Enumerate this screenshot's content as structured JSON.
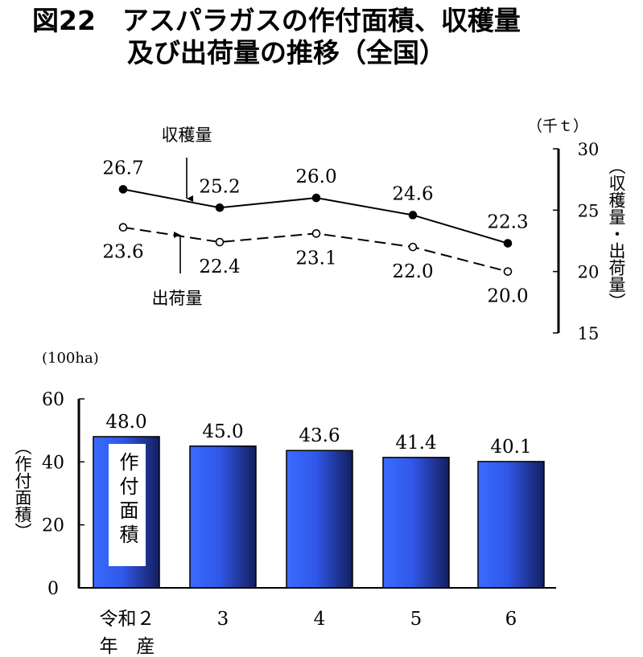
{
  "title": {
    "line1": "図22　アスパラガスの作付面積、収穫量",
    "line2": "及び出荷量の推移（全国）"
  },
  "chart_data": [
    {
      "type": "line",
      "x": [
        "令和２年産",
        "3",
        "4",
        "5",
        "6"
      ],
      "series": [
        {
          "name": "収穫量",
          "values": [
            26.7,
            25.2,
            26.0,
            24.6,
            22.3
          ],
          "color": "#000000",
          "marker": "filled-circle",
          "line_style": "solid"
        },
        {
          "name": "出荷量",
          "values": [
            23.6,
            22.4,
            23.1,
            22.0,
            20.0
          ],
          "color": "#000000",
          "marker": "hollow-circle",
          "line_style": "dashed"
        }
      ],
      "yaxis": {
        "position": "right",
        "range": [
          15,
          30
        ],
        "ticks": [
          15,
          20,
          25,
          30
        ],
        "unit": "（千ｔ）",
        "label": "（収穫量・出荷量）"
      },
      "grid": false
    },
    {
      "type": "bar",
      "categories": [
        "令和２年産",
        "3",
        "4",
        "5",
        "6"
      ],
      "values": [
        48.0,
        45.0,
        43.6,
        41.4,
        40.1
      ],
      "series_label": "作付面積",
      "bar_color_light": "#3a6cff",
      "bar_color_dark": "#141e5e",
      "yaxis": {
        "position": "left",
        "range": [
          0,
          60
        ],
        "ticks": [
          0,
          20,
          40,
          60
        ],
        "unit": "(100ha)",
        "label": "（作付面積）"
      },
      "grid": false
    }
  ],
  "labels": {
    "shukaku": "収穫量",
    "shukka": "出荷量",
    "line_unit": "（千ｔ）",
    "line_axis_label": "（収穫量・出荷量）",
    "bar_unit": "(100ha)",
    "bar_axis_label": "（作付面積）",
    "bar_inner_label": "作付面積",
    "x_first_top": "令和２",
    "x_first_bottom": "年　産",
    "x_rest": [
      "3",
      "4",
      "5",
      "6"
    ]
  }
}
